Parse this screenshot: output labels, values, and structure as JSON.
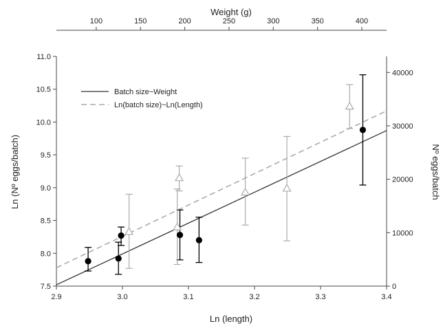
{
  "chart_data": {
    "type": "scatter",
    "xlabel_bottom": "Ln (length)",
    "xlabel_top": "Weight (g)",
    "ylabel_left": "Ln (Nº eggs/batch)",
    "ylabel_right": "Nº eggs/batch",
    "x_bottom": {
      "range": [
        2.9,
        3.4
      ],
      "ticks": [
        "2.9",
        "3.0",
        "3.1",
        "3.2",
        "3.3",
        "3.4"
      ]
    },
    "x_top": {
      "range": [
        55,
        428
      ],
      "ticks": [
        "100",
        "150",
        "200",
        "250",
        "300",
        "350",
        "400"
      ]
    },
    "y_left": {
      "range": [
        7.5,
        11.0
      ],
      "ticks": [
        "7.5",
        "8.0",
        "8.5",
        "9.0",
        "9.5",
        "10.0",
        "10.5",
        "11.0"
      ]
    },
    "y_right": {
      "range": [
        0,
        43000
      ],
      "ticks": [
        "0",
        "10000",
        "20000",
        "30000",
        "40000"
      ]
    },
    "grid": false,
    "legend": {
      "placement": "top-left",
      "entries": [
        {
          "label": "Batch size~Weight",
          "style": "solid",
          "color": "#333333"
        },
        {
          "label": "Ln(batch size)~Ln(Length)",
          "style": "dashed",
          "color": "#aaaaaa"
        }
      ]
    },
    "series": [
      {
        "marker": "filled-circle",
        "color": "#000000",
        "points": [
          {
            "x": 2.948,
            "y": 7.88,
            "lo": 7.73,
            "hi": 8.09
          },
          {
            "x": 2.994,
            "y": 7.92,
            "lo": 7.68,
            "hi": 8.17
          },
          {
            "x": 2.998,
            "y": 8.27,
            "lo": 8.12,
            "hi": 8.4
          },
          {
            "x": 3.087,
            "y": 8.28,
            "lo": 7.9,
            "hi": 8.66
          },
          {
            "x": 3.116,
            "y": 8.2,
            "lo": 7.86,
            "hi": 8.55
          },
          {
            "x": 3.364,
            "y": 9.88,
            "lo": 9.04,
            "hi": 10.72
          }
        ]
      },
      {
        "marker": "open-triangle",
        "color": "#aaaaaa",
        "points": [
          {
            "x": 3.01,
            "y": 8.33,
            "lo": 7.77,
            "hi": 8.9
          },
          {
            "x": 3.083,
            "y": 8.4,
            "lo": 7.83,
            "hi": 8.98
          },
          {
            "x": 3.086,
            "y": 9.15,
            "lo": 8.95,
            "hi": 9.33
          },
          {
            "x": 3.186,
            "y": 8.93,
            "lo": 8.43,
            "hi": 9.45
          },
          {
            "x": 3.249,
            "y": 8.99,
            "lo": 8.19,
            "hi": 9.78
          },
          {
            "x": 3.344,
            "y": 10.24,
            "lo": 9.9,
            "hi": 10.57
          }
        ]
      }
    ],
    "fit_lines": [
      {
        "name": "Batch size~Weight",
        "style": "solid",
        "color": "#333333",
        "from": [
          2.9,
          7.52
        ],
        "to": [
          3.4,
          9.87
        ]
      },
      {
        "name": "Ln(batch size)~Ln(Length)",
        "style": "dashed",
        "color": "#aaaaaa",
        "from": [
          2.9,
          7.78
        ],
        "to": [
          3.4,
          10.17
        ]
      }
    ]
  }
}
